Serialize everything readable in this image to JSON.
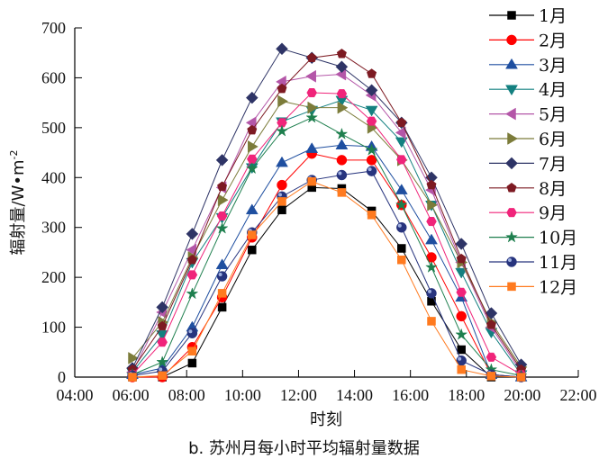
{
  "chart_data": {
    "type": "line",
    "title": "",
    "caption": "b. 苏州月每小时平均辐射量数据",
    "xlabel": "时刻",
    "ylabel": "辐射量/W•m⁻²",
    "ylabel_parts": {
      "main": "辐射量/W•m",
      "sup": "-2"
    },
    "xlim": [
      4,
      22
    ],
    "ylim": [
      0,
      700
    ],
    "x_ticks": [
      "04:00",
      "06:00",
      "08:00",
      "10:00",
      "12:00",
      "14:00",
      "16:00",
      "18:00",
      "20:00",
      "22:00"
    ],
    "y_ticks": [
      0,
      100,
      200,
      300,
      400,
      500,
      600,
      700
    ],
    "grid": false,
    "legend_position": "upper right",
    "x": [
      6,
      7,
      8,
      9,
      10,
      11,
      12,
      13,
      14,
      15,
      16,
      17,
      18,
      19
    ],
    "series": [
      {
        "name": "1月",
        "color": "#000000",
        "marker": "square",
        "values": [
          0,
          0,
          28,
          140,
          255,
          335,
          380,
          378,
          333,
          258,
          152,
          55,
          0,
          0
        ]
      },
      {
        "name": "2月",
        "color": "#ff0000",
        "marker": "circle",
        "values": [
          0,
          0,
          60,
          160,
          280,
          385,
          448,
          435,
          435,
          345,
          240,
          122,
          5,
          0
        ]
      },
      {
        "name": "3月",
        "color": "#1f4fa0",
        "marker": "triangle-up",
        "values": [
          5,
          18,
          100,
          225,
          335,
          430,
          458,
          465,
          462,
          375,
          275,
          160,
          5,
          0
        ]
      },
      {
        "name": "4月",
        "color": "#138080",
        "marker": "triangle-down",
        "values": [
          10,
          85,
          230,
          320,
          420,
          512,
          535,
          555,
          535,
          472,
          345,
          210,
          90,
          5
        ]
      },
      {
        "name": "5月",
        "color": "#b456a8",
        "marker": "triangle-left",
        "values": [
          10,
          130,
          255,
          380,
          510,
          592,
          603,
          607,
          565,
          490,
          375,
          230,
          100,
          10
        ]
      },
      {
        "name": "6月",
        "color": "#7c7c3a",
        "marker": "triangle-right",
        "values": [
          38,
          110,
          240,
          355,
          462,
          553,
          540,
          540,
          500,
          435,
          345,
          230,
          110,
          20
        ]
      },
      {
        "name": "7月",
        "color": "#2e3466",
        "marker": "diamond",
        "values": [
          18,
          140,
          287,
          435,
          560,
          658,
          640,
          622,
          575,
          510,
          400,
          267,
          128,
          25
        ]
      },
      {
        "name": "8月",
        "color": "#7d1a22",
        "marker": "pentagon",
        "values": [
          15,
          102,
          235,
          382,
          495,
          578,
          640,
          648,
          608,
          510,
          385,
          237,
          105,
          15
        ]
      },
      {
        "name": "9月",
        "color": "#f0247a",
        "marker": "hexagon",
        "values": [
          5,
          70,
          205,
          323,
          437,
          510,
          570,
          568,
          513,
          436,
          312,
          170,
          40,
          5
        ]
      },
      {
        "name": "10月",
        "color": "#1e7f4e",
        "marker": "star",
        "values": [
          5,
          30,
          167,
          298,
          418,
          493,
          520,
          487,
          455,
          345,
          220,
          85,
          15,
          3
        ]
      },
      {
        "name": "11月",
        "color": "#27347e",
        "marker": "sphere",
        "values": [
          3,
          12,
          88,
          202,
          290,
          362,
          395,
          405,
          413,
          300,
          168,
          33,
          5,
          0
        ]
      },
      {
        "name": "12月",
        "color": "#ff7a1f",
        "marker": "square",
        "values": [
          0,
          3,
          52,
          168,
          285,
          352,
          392,
          370,
          325,
          235,
          112,
          15,
          2,
          0
        ]
      }
    ]
  }
}
